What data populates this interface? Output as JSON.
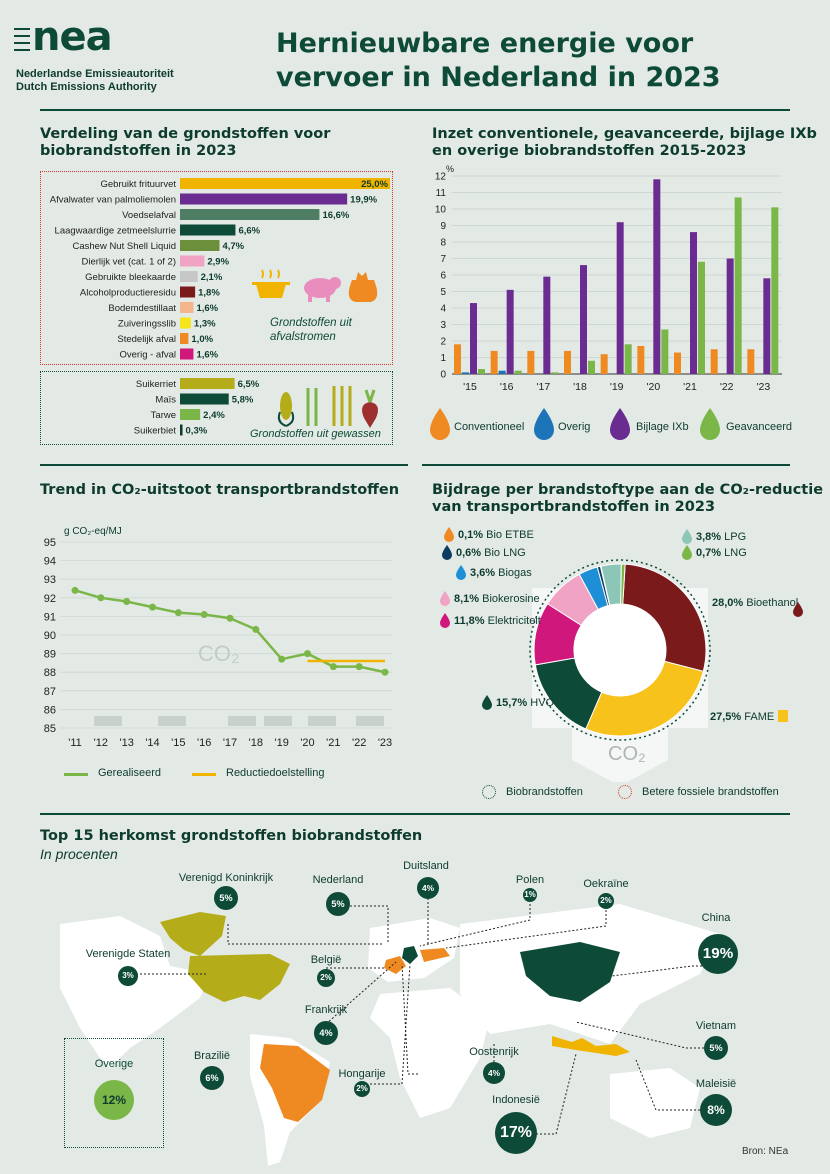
{
  "header": {
    "logo": "nea",
    "org_nl": "Nederlandse Emissieautoriteit",
    "org_en": "Dutch Emissions Authority",
    "title_line1": "Hernieuwbare energie voor",
    "title_line2": "vervoer in Nederland in 2023"
  },
  "colors": {
    "dark_green": "#0d4a37",
    "purple": "#6a2c91",
    "orange": "#ef8a22",
    "light_green": "#7ab648",
    "blue": "#1e74b8",
    "yellow": "#f0b400",
    "red": "#d9362b"
  },
  "chart_data": [
    {
      "type": "bar",
      "title_line1": "Verdeling van de grondstoffen voor",
      "title_line2": "biobrandstoffen in 2023",
      "groups": [
        {
          "name": "Grondstoffen uit afvalstromen",
          "categories": [
            "Gebruikt frituurvet",
            "Afvalwater van palmoliemolen",
            "Voedselafval",
            "Laagwaardige zetmeelslurrie",
            "Cashew Nut Shell Liquid",
            "Dierlijk vet (cat. 1 of 2)",
            "Gebruikte bleekaarde",
            "Alcoholproductieresidu",
            "Bodemdestillaat",
            "Zuiveringsslib",
            "Stedelijk afval",
            "Overig - afval"
          ],
          "values": [
            25.0,
            19.9,
            16.6,
            6.6,
            4.7,
            2.9,
            2.1,
            1.8,
            1.6,
            1.3,
            1.0,
            1.6
          ],
          "value_labels": [
            "25,0%",
            "19,9%",
            "16,6%",
            "6,6%",
            "4,7%",
            "2,9%",
            "2,1%",
            "1,8%",
            "1,6%",
            "1,3%",
            "1,0%",
            "1,6%"
          ],
          "colors": [
            "#f0b400",
            "#6a2c91",
            "#4f7d63",
            "#0d4a37",
            "#6b8f3b",
            "#f0a3c4",
            "#c7c7c7",
            "#7a1a1a",
            "#f4b58b",
            "#f5e51a",
            "#ef8a22",
            "#d0177b"
          ]
        },
        {
          "name": "Grondstoffen uit gewassen",
          "categories": [
            "Suikerriet",
            "Maïs",
            "Tarwe",
            "Suikerbiet"
          ],
          "values": [
            6.5,
            5.8,
            2.4,
            0.3
          ],
          "value_labels": [
            "6,5%",
            "5,8%",
            "2,4%",
            "0,3%"
          ],
          "colors": [
            "#b5ac1a",
            "#0d4a37",
            "#7ab648",
            "#0d3b2e"
          ]
        }
      ]
    },
    {
      "type": "bar",
      "title_line1": "Inzet conventionele, geavanceerde, bijlage IXb",
      "title_line2": "en overige biobrandstoffen 2015-2023",
      "ylabel": "%",
      "ylim": [
        0,
        12
      ],
      "yticks": [
        "0",
        "1",
        "2",
        "3",
        "4",
        "5",
        "6",
        "7",
        "8",
        "9",
        "10",
        "11",
        "12"
      ],
      "categories": [
        "'15",
        "'16",
        "'17",
        "'18",
        "'19",
        "'20",
        "'21",
        "'22",
        "'23"
      ],
      "series": [
        {
          "name": "Conventioneel",
          "color": "#ef8a22",
          "values": [
            1.8,
            1.4,
            1.4,
            1.4,
            1.2,
            1.7,
            1.3,
            1.5,
            1.5
          ]
        },
        {
          "name": "Overig",
          "color": "#1e74b8",
          "values": [
            0.1,
            0.2,
            0.0,
            0.0,
            0.0,
            0.0,
            0.0,
            0.0,
            0.0
          ]
        },
        {
          "name": "Bijlage IXb",
          "color": "#6a2c91",
          "values": [
            4.3,
            5.1,
            5.9,
            6.6,
            9.2,
            11.8,
            8.6,
            7.0,
            5.8
          ]
        },
        {
          "name": "Geavanceerd",
          "color": "#7ab648",
          "values": [
            0.3,
            0.2,
            0.1,
            0.8,
            1.8,
            2.7,
            6.8,
            10.7,
            10.1
          ]
        }
      ]
    },
    {
      "type": "line",
      "title": "Trend in CO₂-uitstoot transportbrandstoffen",
      "ylabel": "g CO₂-eq/MJ",
      "ylim": [
        85,
        95
      ],
      "yticks": [
        "85",
        "86",
        "87",
        "88",
        "89",
        "90",
        "91",
        "92",
        "93",
        "94",
        "95"
      ],
      "x": [
        "'11",
        "'12",
        "'13",
        "'14",
        "'15",
        "'16",
        "'17",
        "'18",
        "'19",
        "'20",
        "'21",
        "'22",
        "'23"
      ],
      "series": [
        {
          "name": "Gerealiseerd",
          "color": "#7ab648",
          "values": [
            92.4,
            92.0,
            91.8,
            91.5,
            91.2,
            91.1,
            90.9,
            90.3,
            88.7,
            89.0,
            88.3,
            88.3,
            88.0
          ]
        },
        {
          "name": "Reductiedoelstelling",
          "color": "#f0b400",
          "x_range": [
            "'20",
            "'23"
          ],
          "value": 88.6
        }
      ],
      "watermark": "CO₂"
    },
    {
      "type": "pie",
      "title_line1": "Bijdrage per brandstoftype aan de CO₂-reductie",
      "title_line2": "van transportbrandstoffen in 2023",
      "slices": [
        {
          "name": "Bioethanol",
          "value": 28.0,
          "label": "28,0%",
          "color": "#7a1a1a"
        },
        {
          "name": "FAME",
          "value": 27.5,
          "label": "27,5%",
          "color": "#f7c21b"
        },
        {
          "name": "HVO",
          "value": 15.7,
          "label": "15,7%",
          "color": "#0d4a37"
        },
        {
          "name": "Elektriciteit",
          "value": 11.8,
          "label": "11,8%",
          "color": "#d0177b"
        },
        {
          "name": "Biokerosine",
          "value": 8.1,
          "label": "8,1%",
          "color": "#f0a3c4"
        },
        {
          "name": "Biogas",
          "value": 3.6,
          "label": "3,6%",
          "color": "#1e8fd6"
        },
        {
          "name": "Bio LNG",
          "value": 0.6,
          "label": "0,6%",
          "color": "#0d3b5e"
        },
        {
          "name": "Bio ETBE",
          "value": 0.1,
          "label": "0,1%",
          "color": "#ef8a22"
        },
        {
          "name": "LPG",
          "value": 3.8,
          "label": "3,8%",
          "color": "#8cc6b6"
        },
        {
          "name": "LNG",
          "value": 0.7,
          "label": "0,7%",
          "color": "#7ab648"
        }
      ],
      "legend": [
        "Biobrandstoffen",
        "Betere fossiele brandstoffen"
      ],
      "watermark": "CO₂"
    }
  ],
  "crop_icons_note": "Grondstoffen uit gewassen",
  "map": {
    "title": "Top 15 herkomst grondstoffen biobrandstoffen",
    "subtitle": "In procenten",
    "countries": [
      {
        "name": "Verenigd Koninkrijk",
        "value": "5%"
      },
      {
        "name": "Nederland",
        "value": "5%"
      },
      {
        "name": "Duitsland",
        "value": "4%"
      },
      {
        "name": "Polen",
        "value": "1%"
      },
      {
        "name": "Oekraïne",
        "value": "2%"
      },
      {
        "name": "China",
        "value": "19%"
      },
      {
        "name": "Verenigde Staten",
        "value": "3%"
      },
      {
        "name": "België",
        "value": "2%"
      },
      {
        "name": "Frankrijk",
        "value": "4%"
      },
      {
        "name": "Vietnam",
        "value": "5%"
      },
      {
        "name": "Brazilië",
        "value": "6%"
      },
      {
        "name": "Hongarije",
        "value": "2%"
      },
      {
        "name": "Oostenrijk",
        "value": "4%"
      },
      {
        "name": "Maleisië",
        "value": "8%"
      },
      {
        "name": "Indonesië",
        "value": "17%"
      }
    ],
    "other": {
      "name": "Overige",
      "value": "12%"
    },
    "source": "Bron: NEa"
  }
}
